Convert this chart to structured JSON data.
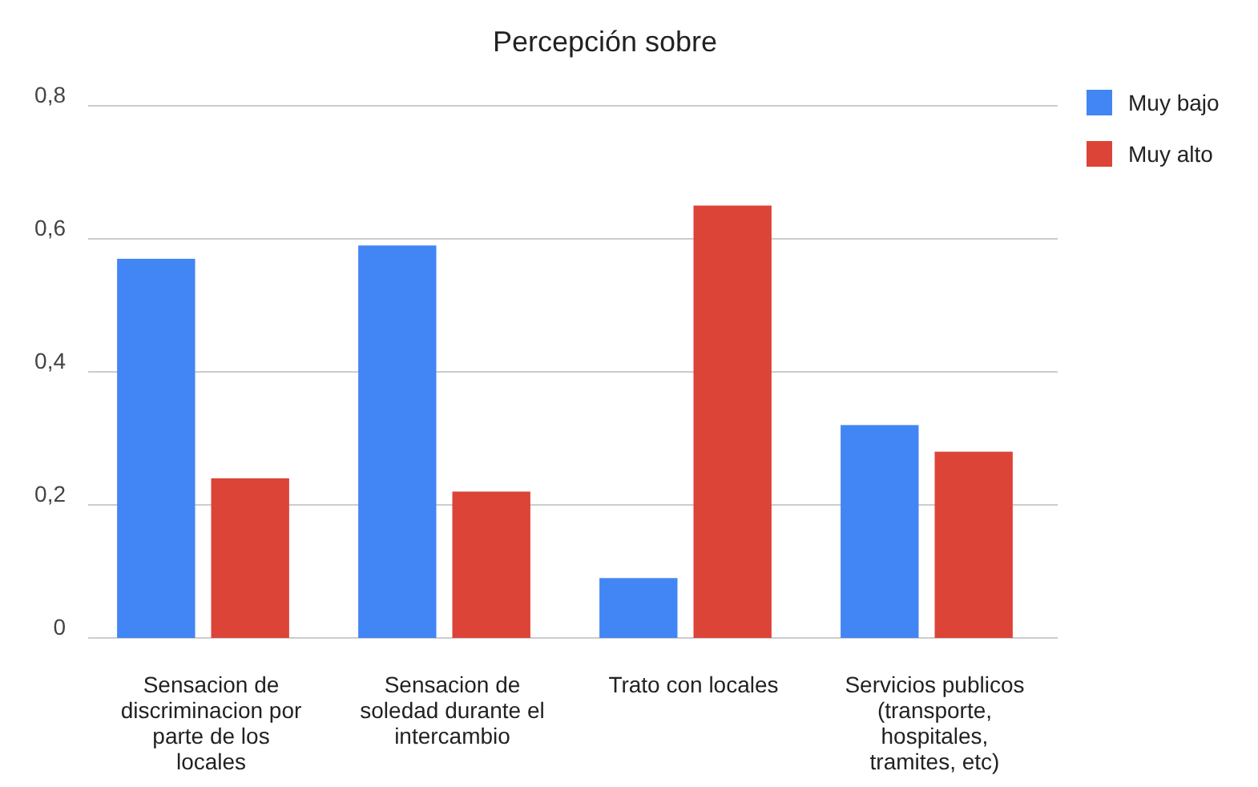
{
  "chart_data": {
    "type": "bar",
    "title": "Percepción sobre",
    "categories": [
      "Sensacion de discriminacion por parte de los locales",
      "Sensacion de soledad durante el intercambio",
      "Trato con locales",
      "Servicios publicos (transporte, hospitales, tramites, etc)"
    ],
    "series": [
      {
        "name": "Muy bajo",
        "color": "#4285f4",
        "values": [
          0.57,
          0.59,
          0.09,
          0.32
        ]
      },
      {
        "name": "Muy alto",
        "color": "#db4437",
        "values": [
          0.24,
          0.22,
          0.65,
          0.28
        ]
      }
    ],
    "ylim": [
      0,
      0.8
    ],
    "yticks": [
      0,
      {
        "value": 0.2,
        "label": "0,2"
      },
      {
        "value": 0.4,
        "label": "0,4"
      },
      {
        "value": 0.6,
        "label": "0,6"
      },
      {
        "value": 0.8,
        "label": "0,8"
      }
    ],
    "grid": true,
    "legend": "top right"
  }
}
